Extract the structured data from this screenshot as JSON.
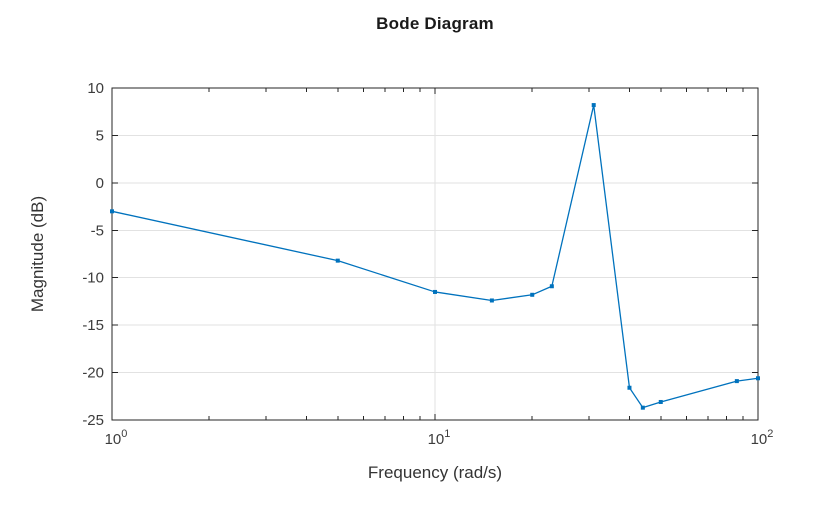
{
  "chart_data": {
    "type": "line",
    "title": "Bode Diagram",
    "xlabel": "Frequency (rad/s)",
    "ylabel": "Magnitude (dB)",
    "x_scale": "log10",
    "xlim": [
      1,
      100
    ],
    "ylim": [
      -25,
      10
    ],
    "grid": true,
    "legend": "none",
    "series": [
      {
        "name": "Magnitude",
        "marker": "square",
        "color": "#0072BD",
        "x": [
          1,
          5,
          10,
          15,
          20,
          23,
          31,
          40,
          44,
          50,
          86,
          100
        ],
        "y": [
          -3.0,
          -8.2,
          -11.5,
          -12.4,
          -11.8,
          -10.9,
          8.2,
          -21.6,
          -23.7,
          -23.1,
          -20.9,
          -20.6
        ]
      }
    ],
    "yticks": {
      "values": [
        10,
        5,
        0,
        -5,
        -10,
        -15,
        -20,
        -25
      ],
      "labels": [
        "10",
        "5",
        "0",
        "-5",
        "-10",
        "-15",
        "-20",
        "-25"
      ]
    },
    "xticks": [
      {
        "value": 1,
        "base": "10",
        "exponent": "0"
      },
      {
        "value": 10,
        "base": "10",
        "exponent": "1"
      },
      {
        "value": 100,
        "base": "10",
        "exponent": "2"
      }
    ],
    "colors": {
      "line": "#0072BD",
      "axis": "#262626",
      "grid": "#e2e2e2",
      "tick_label": "#3c3c3c",
      "title": "#1a1a1a"
    }
  }
}
